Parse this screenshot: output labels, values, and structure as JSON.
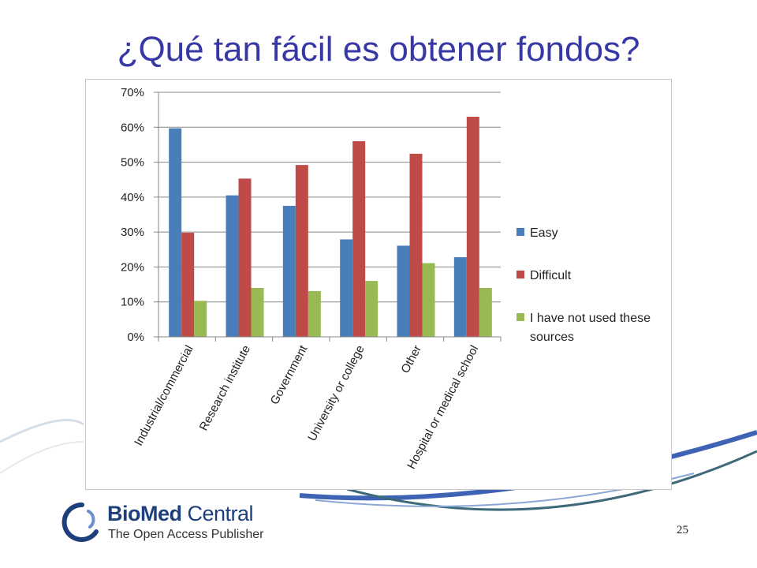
{
  "slide": {
    "title": "¿Qué tan fácil es obtener fondos?",
    "page_number": "25"
  },
  "logo": {
    "name_bold": "BioMed",
    "name_regular": " Central",
    "tagline": "The Open Access Publisher",
    "primary_color": "#1d3f7c"
  },
  "chart_data": {
    "type": "bar",
    "categories": [
      "Industrial/commercial",
      "Research institute",
      "Government",
      "University or college",
      "Other",
      "Hospital or medical school"
    ],
    "series": [
      {
        "name": "Easy",
        "color": "#4a7ebb",
        "values": [
          59.7,
          40.5,
          37.5,
          27.9,
          26.1,
          22.8
        ]
      },
      {
        "name": "Difficult",
        "color": "#be4b48",
        "values": [
          29.8,
          45.3,
          49.2,
          56.0,
          52.4,
          63.0
        ]
      },
      {
        "name": "I have not used these sources",
        "color": "#98b954",
        "values": [
          10.3,
          14.0,
          13.1,
          16.0,
          21.1,
          14.0
        ]
      }
    ],
    "ylim": [
      0,
      70
    ],
    "yticks": [
      0,
      10,
      20,
      30,
      40,
      50,
      60,
      70
    ],
    "ytick_labels": [
      "0%",
      "10%",
      "20%",
      "30%",
      "40%",
      "50%",
      "60%",
      "70%"
    ],
    "gridlines": true,
    "legend_position": "right",
    "title": "",
    "xlabel": "",
    "ylabel": ""
  }
}
